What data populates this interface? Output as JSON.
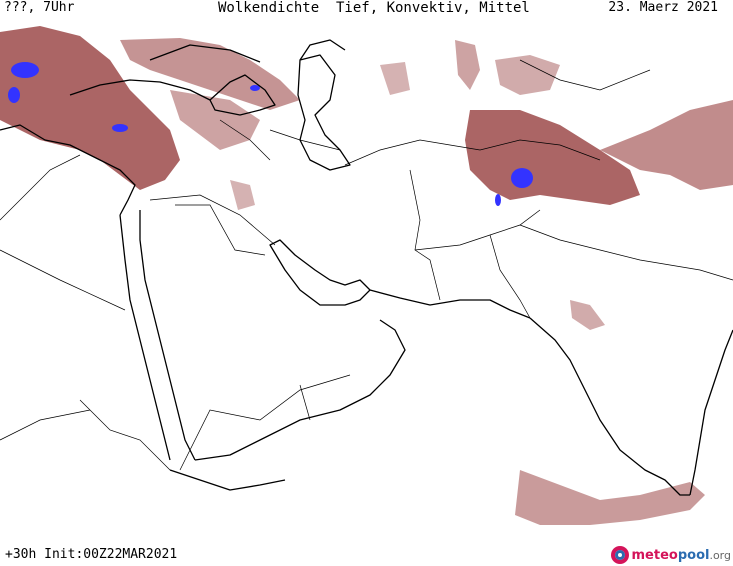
{
  "header": {
    "left_label": "???, 7Uhr",
    "title": "Wolkendichte  Tief, Konvektiv, Mittel",
    "date": "23. Maerz 2021"
  },
  "footer": {
    "run_info": "+30h Init:00Z22MAR2021",
    "logo": {
      "part1": "meteo",
      "part2": "pool",
      "part3": ".org"
    }
  },
  "colors": {
    "cloud": "#9c4a4a",
    "cloud_light": "#c98e8e",
    "convective": "#3333ff",
    "coastline": "#000000",
    "border": "#000000",
    "logo_accent": "#d4145a"
  }
}
